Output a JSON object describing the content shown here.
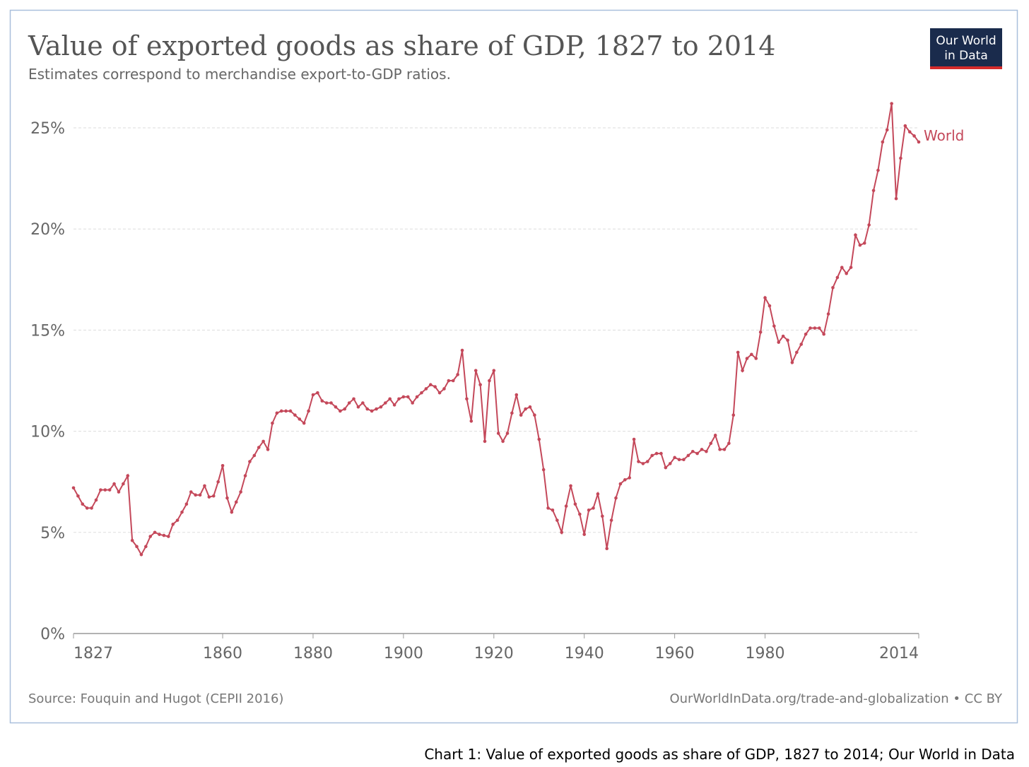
{
  "chart_data": {
    "type": "line",
    "title": "Value of exported goods as share of GDP, 1827 to 2014",
    "subtitle": "Estimates correspond to merchandise export-to-GDP ratios.",
    "logo": [
      "Our World",
      "in Data"
    ],
    "source": "Source: Fouquin and Hugot (CEPII 2016)",
    "footer_right": "OurWorldInData.org/trade-and-globalization • CC BY",
    "caption": "Chart 1: Value of exported goods as share of GDP, 1827 to 2014; Our World in Data",
    "grid": true,
    "xlim": [
      1827,
      2014
    ],
    "xticks": [
      1827,
      1860,
      1880,
      1900,
      1920,
      1940,
      1960,
      1980,
      2014
    ],
    "ylim": [
      0,
      25
    ],
    "yticks": [
      {
        "value": 0,
        "label": "0%"
      },
      {
        "value": 5,
        "label": "5%"
      },
      {
        "value": 10,
        "label": "10%"
      },
      {
        "value": 15,
        "label": "15%"
      },
      {
        "value": 20,
        "label": "20%"
      },
      {
        "value": 25,
        "label": "25%"
      }
    ],
    "x": [
      1827,
      1828,
      1829,
      1830,
      1831,
      1832,
      1833,
      1834,
      1835,
      1836,
      1837,
      1838,
      1839,
      1840,
      1841,
      1842,
      1843,
      1844,
      1845,
      1846,
      1847,
      1848,
      1849,
      1850,
      1851,
      1852,
      1853,
      1854,
      1855,
      1856,
      1857,
      1858,
      1859,
      1860,
      1861,
      1862,
      1863,
      1864,
      1865,
      1866,
      1867,
      1868,
      1869,
      1870,
      1871,
      1872,
      1873,
      1874,
      1875,
      1876,
      1877,
      1878,
      1879,
      1880,
      1881,
      1882,
      1883,
      1884,
      1885,
      1886,
      1887,
      1888,
      1889,
      1890,
      1891,
      1892,
      1893,
      1894,
      1895,
      1896,
      1897,
      1898,
      1899,
      1900,
      1901,
      1902,
      1903,
      1904,
      1905,
      1906,
      1907,
      1908,
      1909,
      1910,
      1911,
      1912,
      1913,
      1914,
      1915,
      1916,
      1917,
      1918,
      1919,
      1920,
      1921,
      1922,
      1923,
      1924,
      1925,
      1926,
      1927,
      1928,
      1929,
      1930,
      1931,
      1932,
      1933,
      1934,
      1935,
      1936,
      1937,
      1938,
      1939,
      1940,
      1941,
      1942,
      1943,
      1944,
      1945,
      1946,
      1947,
      1948,
      1949,
      1950,
      1951,
      1952,
      1953,
      1954,
      1955,
      1956,
      1957,
      1958,
      1959,
      1960,
      1961,
      1962,
      1963,
      1964,
      1965,
      1966,
      1967,
      1968,
      1969,
      1970,
      1971,
      1972,
      1973,
      1974,
      1975,
      1976,
      1977,
      1978,
      1979,
      1980,
      1981,
      1982,
      1983,
      1984,
      1985,
      1986,
      1987,
      1988,
      1989,
      1990,
      1991,
      1992,
      1993,
      1994,
      1995,
      1996,
      1997,
      1998,
      1999,
      2000,
      2001,
      2002,
      2003,
      2004,
      2005,
      2006,
      2007,
      2008,
      2009,
      2010,
      2011,
      2012,
      2013,
      2014
    ],
    "series": [
      {
        "name": "World",
        "color": "#c4485a",
        "values": [
          7.2,
          6.8,
          6.4,
          6.2,
          6.2,
          6.6,
          7.1,
          7.1,
          7.1,
          7.4,
          7.0,
          7.4,
          7.8,
          4.6,
          4.3,
          3.9,
          4.3,
          4.8,
          5.0,
          4.9,
          4.85,
          4.8,
          5.4,
          5.6,
          6.0,
          6.4,
          7.0,
          6.85,
          6.85,
          7.3,
          6.75,
          6.8,
          7.5,
          8.3,
          6.7,
          6.0,
          6.5,
          7.0,
          7.8,
          8.5,
          8.8,
          9.2,
          9.5,
          9.1,
          10.4,
          10.9,
          11.0,
          11.0,
          11.0,
          10.8,
          10.6,
          10.4,
          11.0,
          11.8,
          11.9,
          11.5,
          11.4,
          11.4,
          11.2,
          11.0,
          11.1,
          11.4,
          11.6,
          11.2,
          11.4,
          11.1,
          11.0,
          11.1,
          11.2,
          11.4,
          11.6,
          11.3,
          11.6,
          11.7,
          11.7,
          11.4,
          11.7,
          11.9,
          12.1,
          12.3,
          12.2,
          11.9,
          12.1,
          12.5,
          12.5,
          12.8,
          14.0,
          11.6,
          10.5,
          13.0,
          12.3,
          9.5,
          12.5,
          13.0,
          9.9,
          9.5,
          9.9,
          10.9,
          11.8,
          10.8,
          11.1,
          11.2,
          10.8,
          9.6,
          8.1,
          6.2,
          6.1,
          5.6,
          5.0,
          6.3,
          7.3,
          6.4,
          5.9,
          4.9,
          6.1,
          6.2,
          6.9,
          5.8,
          4.2,
          5.6,
          6.7,
          7.4,
          7.6,
          7.7,
          9.6,
          8.5,
          8.4,
          8.5,
          8.8,
          8.9,
          8.9,
          8.2,
          8.4,
          8.7,
          8.6,
          8.6,
          8.8,
          9.0,
          8.9,
          9.1,
          9.0,
          9.4,
          9.8,
          9.1,
          9.1,
          9.4,
          10.8,
          13.9,
          13.0,
          13.6,
          13.8,
          13.6,
          14.9,
          16.6,
          16.2,
          15.2,
          14.4,
          14.7,
          14.5,
          13.4,
          13.9,
          14.3,
          14.8,
          15.1,
          15.1,
          15.1,
          14.8,
          15.8,
          17.1,
          17.6,
          18.1,
          17.8,
          18.1,
          19.7,
          19.2,
          19.3,
          20.2,
          21.9,
          22.9,
          24.3,
          24.9,
          26.2,
          21.5,
          23.5,
          25.1,
          24.8,
          24.6,
          24.3
        ]
      }
    ]
  }
}
